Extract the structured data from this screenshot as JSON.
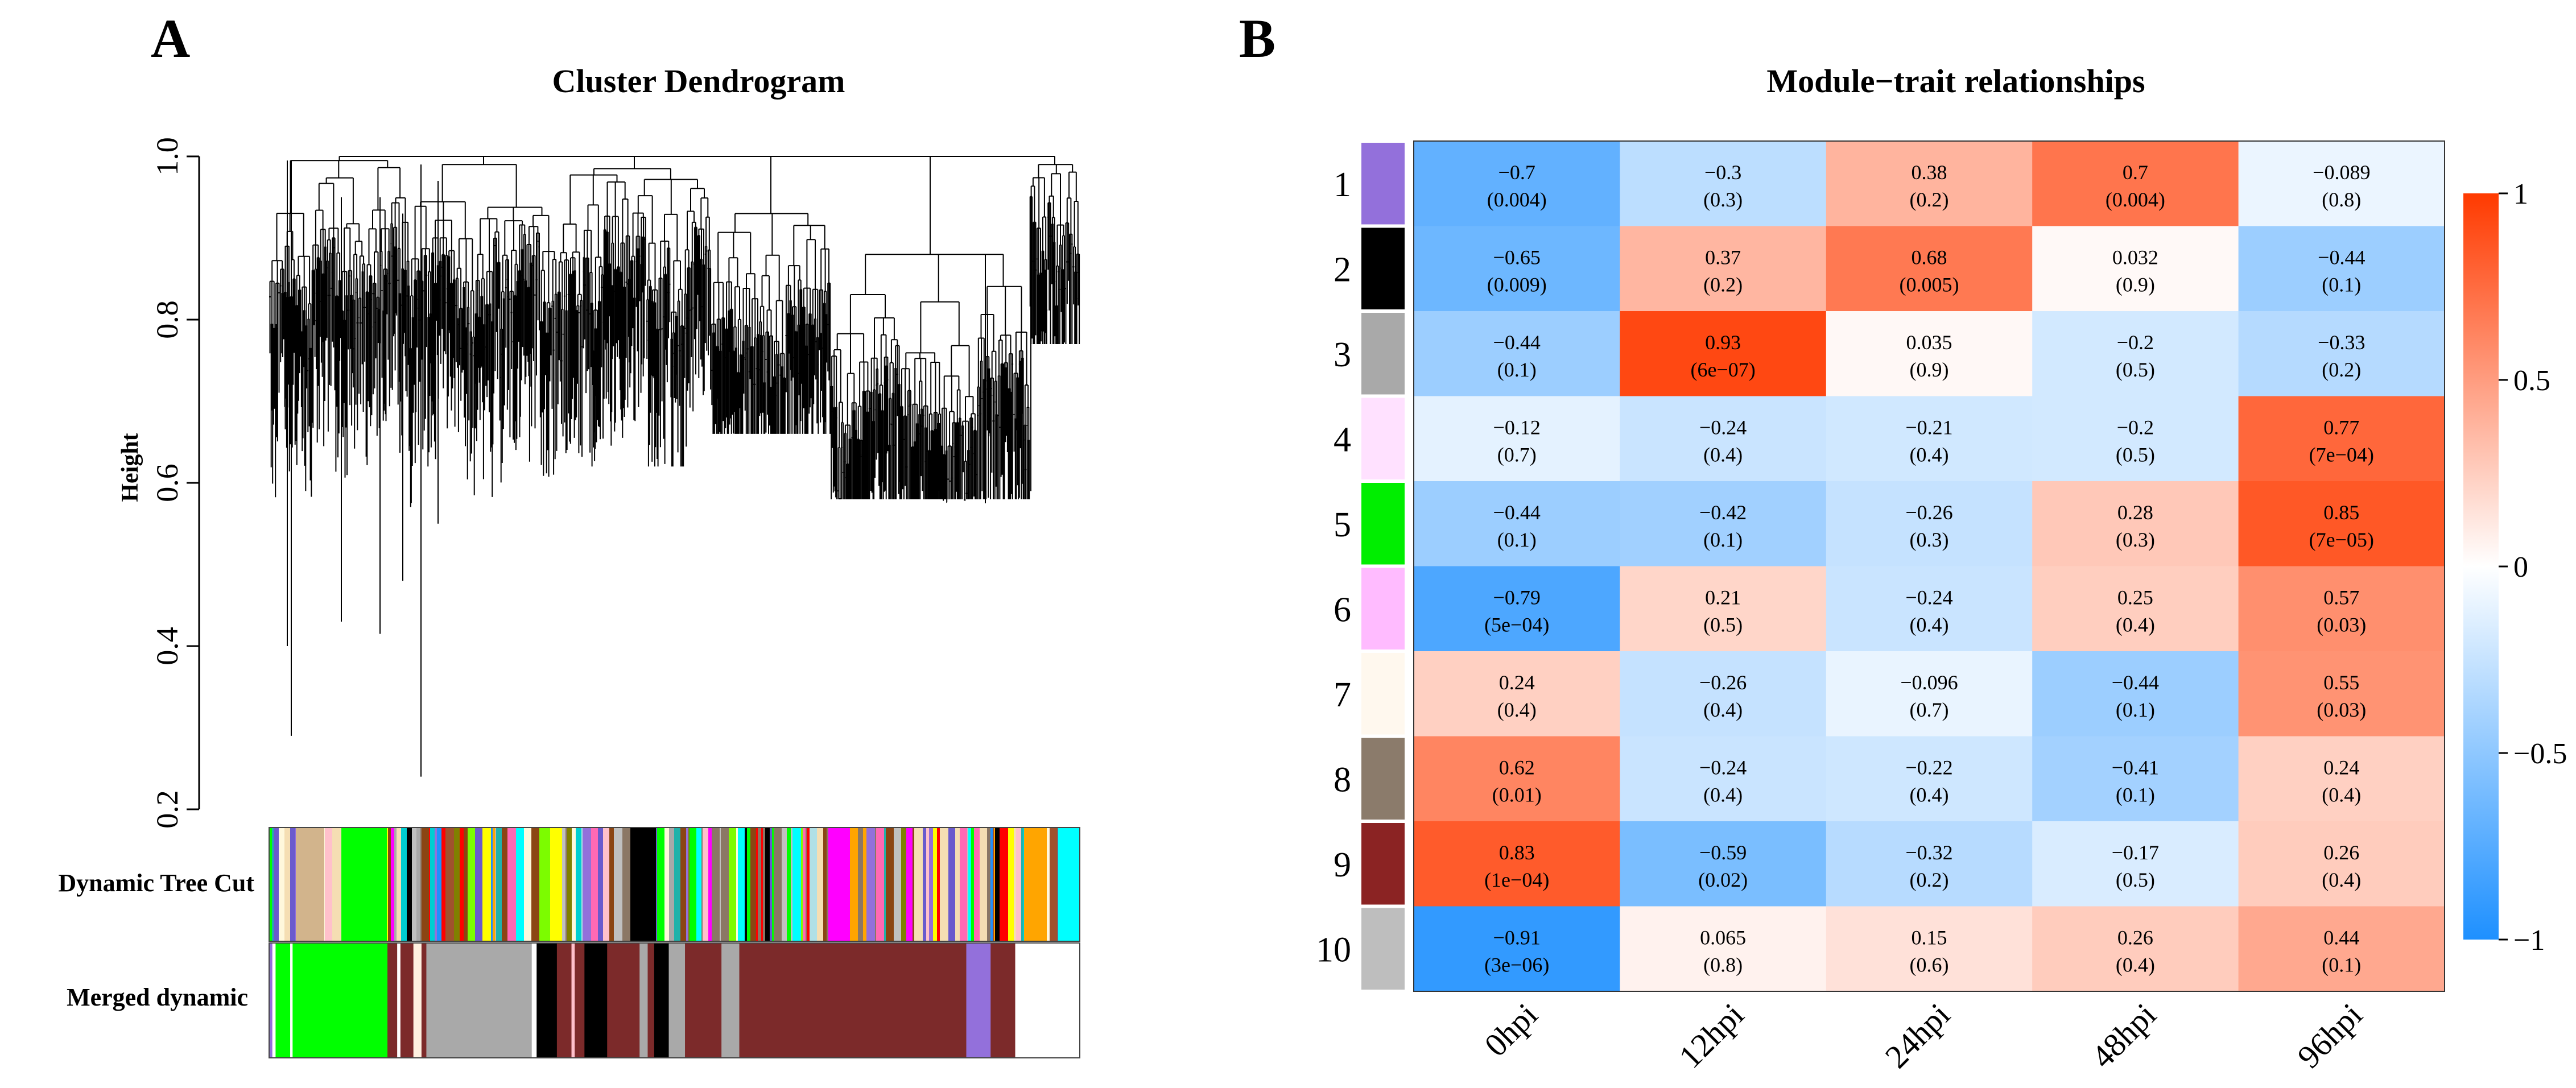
{
  "panels": {
    "a_letter": "A",
    "b_letter": "B"
  },
  "chart_data": [
    {
      "type": "dendrogram",
      "title": "Cluster Dendrogram",
      "ylabel": "Height",
      "ylim": [
        0.2,
        1.0
      ],
      "yticks": [
        "0.2",
        "0.4",
        "0.6",
        "0.8",
        "1.0"
      ],
      "color_bars": [
        {
          "label": "Dynamic Tree Cut",
          "palette": [
            "#ffc0cb",
            "#a0522d",
            "#7cfc00",
            "#00ff00",
            "#9370db",
            "#ff00ff",
            "#000000",
            "#ffa500",
            "#00ffff",
            "#ffff00",
            "#8b4513",
            "#ff69b4",
            "#1e90ff",
            "#a9a9a9",
            "#808000",
            "#d2b48c",
            "#ff0000",
            "#20b2aa",
            "#f5deb3",
            "#6a5acd",
            "#00ced1",
            "#fff8dc",
            "#8b7765",
            "#b0e0e6",
            "#c0c0c0"
          ]
        },
        {
          "label": "Merged dynamic",
          "segments": [
            {
              "color": "#9370db",
              "frac": 0.004
            },
            {
              "color": "#ffffff",
              "frac": 0.004
            },
            {
              "color": "#00ff00",
              "frac": 0.018
            },
            {
              "color": "#ffffff",
              "frac": 0.003
            },
            {
              "color": "#00ff00",
              "frac": 0.117
            },
            {
              "color": "#7c2a2a",
              "frac": 0.012
            },
            {
              "color": "#ffffff",
              "frac": 0.004
            },
            {
              "color": "#7c2a2a",
              "frac": 0.016
            },
            {
              "color": "#fff0e0",
              "frac": 0.01
            },
            {
              "color": "#7c2a2a",
              "frac": 0.006
            },
            {
              "color": "#a9a9a9",
              "frac": 0.13
            },
            {
              "color": "#ffffff",
              "frac": 0.006
            },
            {
              "color": "#000000",
              "frac": 0.025
            },
            {
              "color": "#7c2a2a",
              "frac": 0.018
            },
            {
              "color": "#ffc0cb",
              "frac": 0.004
            },
            {
              "color": "#7c2a2a",
              "frac": 0.012
            },
            {
              "color": "#000000",
              "frac": 0.028
            },
            {
              "color": "#7c2a2a",
              "frac": 0.04
            },
            {
              "color": "#a9a9a9",
              "frac": 0.01
            },
            {
              "color": "#7c2a2a",
              "frac": 0.008
            },
            {
              "color": "#000000",
              "frac": 0.018
            },
            {
              "color": "#a9a9a9",
              "frac": 0.02
            },
            {
              "color": "#7c2a2a",
              "frac": 0.045
            },
            {
              "color": "#a9a9a9",
              "frac": 0.022
            },
            {
              "color": "#7c2a2a",
              "frac": 0.28
            },
            {
              "color": "#9370db",
              "frac": 0.03
            },
            {
              "color": "#7c2a2a",
              "frac": 0.03
            }
          ]
        }
      ]
    },
    {
      "type": "heatmap",
      "title": "Module−trait relationships",
      "columns": [
        "0hpi",
        "12hpi",
        "24hpi",
        "48hpi",
        "96hpi"
      ],
      "rows": [
        {
          "label": "1",
          "color": "#9370db",
          "values": [
            -0.7,
            -0.3,
            0.38,
            0.7,
            -0.089
          ],
          "r": [
            "−0.7",
            "−0.3",
            "0.38",
            "0.7",
            "−0.089"
          ],
          "p": [
            "(0.004)",
            "(0.3)",
            "(0.2)",
            "(0.004)",
            "(0.8)"
          ]
        },
        {
          "label": "2",
          "color": "#000000",
          "values": [
            -0.65,
            0.37,
            0.68,
            0.032,
            -0.44
          ],
          "r": [
            "−0.65",
            "0.37",
            "0.68",
            "0.032",
            "−0.44"
          ],
          "p": [
            "(0.009)",
            "(0.2)",
            "(0.005)",
            "(0.9)",
            "(0.1)"
          ]
        },
        {
          "label": "3",
          "color": "#a9a9a9",
          "values": [
            -0.44,
            0.93,
            0.035,
            -0.2,
            -0.33
          ],
          "r": [
            "−0.44",
            "0.93",
            "0.035",
            "−0.2",
            "−0.33"
          ],
          "p": [
            "(0.1)",
            "(6e−07)",
            "(0.9)",
            "(0.5)",
            "(0.2)"
          ]
        },
        {
          "label": "4",
          "color": "#ffe1ff",
          "values": [
            -0.12,
            -0.24,
            -0.21,
            -0.2,
            0.77
          ],
          "r": [
            "−0.12",
            "−0.24",
            "−0.21",
            "−0.2",
            "0.77"
          ],
          "p": [
            "(0.7)",
            "(0.4)",
            "(0.4)",
            "(0.5)",
            "(7e−04)"
          ]
        },
        {
          "label": "5",
          "color": "#00ee00",
          "values": [
            -0.44,
            -0.42,
            -0.26,
            0.28,
            0.85
          ],
          "r": [
            "−0.44",
            "−0.42",
            "−0.26",
            "0.28",
            "0.85"
          ],
          "p": [
            "(0.1)",
            "(0.1)",
            "(0.3)",
            "(0.3)",
            "(7e−05)"
          ]
        },
        {
          "label": "6",
          "color": "#ffbbff",
          "values": [
            -0.79,
            0.21,
            -0.24,
            0.25,
            0.57
          ],
          "r": [
            "−0.79",
            "0.21",
            "−0.24",
            "0.25",
            "0.57"
          ],
          "p": [
            "(5e−04)",
            "(0.5)",
            "(0.4)",
            "(0.4)",
            "(0.03)"
          ]
        },
        {
          "label": "7",
          "color": "#fff8ee",
          "values": [
            0.24,
            -0.26,
            -0.096,
            -0.44,
            0.55
          ],
          "r": [
            "0.24",
            "−0.26",
            "−0.096",
            "−0.44",
            "0.55"
          ],
          "p": [
            "(0.4)",
            "(0.4)",
            "(0.7)",
            "(0.1)",
            "(0.03)"
          ]
        },
        {
          "label": "8",
          "color": "#8b7b6b",
          "values": [
            0.62,
            -0.24,
            -0.22,
            -0.41,
            0.24
          ],
          "r": [
            "0.62",
            "−0.24",
            "−0.22",
            "−0.41",
            "0.24"
          ],
          "p": [
            "(0.01)",
            "(0.4)",
            "(0.4)",
            "(0.1)",
            "(0.4)"
          ]
        },
        {
          "label": "9",
          "color": "#8b2323",
          "values": [
            0.83,
            -0.59,
            -0.32,
            -0.17,
            0.26
          ],
          "r": [
            "0.83",
            "−0.59",
            "−0.32",
            "−0.17",
            "0.26"
          ],
          "p": [
            "(1e−04)",
            "(0.02)",
            "(0.2)",
            "(0.5)",
            "(0.4)"
          ]
        },
        {
          "label": "10",
          "color": "#bebebe",
          "values": [
            -0.91,
            0.065,
            0.15,
            0.26,
            0.44
          ],
          "r": [
            "−0.91",
            "0.065",
            "0.15",
            "0.26",
            "0.44"
          ],
          "p": [
            "(3e−06)",
            "(0.8)",
            "(0.6)",
            "(0.4)",
            "(0.1)"
          ]
        }
      ],
      "colorbar": {
        "range": [
          -1,
          1
        ],
        "ticks": [
          1,
          0.5,
          0,
          -0.5,
          -1
        ],
        "tick_labels": [
          "1",
          "0.5",
          "0",
          "−0.5",
          "−1"
        ],
        "low_color": "#1e90ff",
        "mid_color": "#ffffff",
        "high_color": "#ff3a00"
      }
    }
  ]
}
